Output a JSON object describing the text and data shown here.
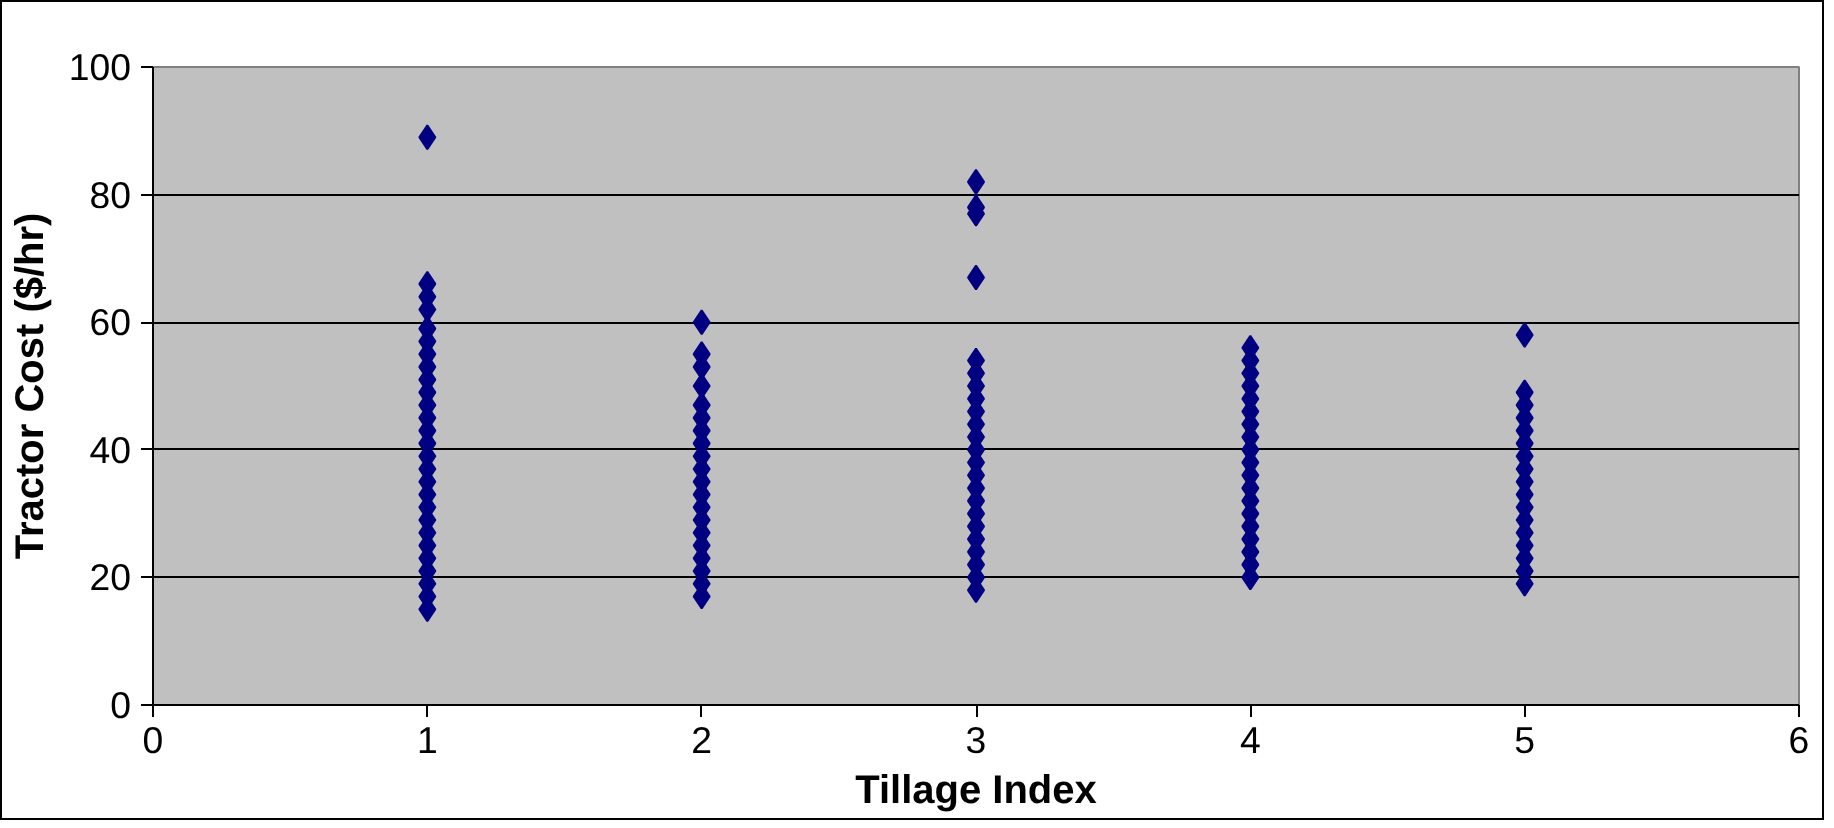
{
  "chart_data": {
    "type": "scatter",
    "xlabel": "Tillage Index",
    "ylabel": "Tractor Cost ($/hr)",
    "xlim": [
      0,
      6
    ],
    "xticks": [
      0,
      1,
      2,
      3,
      4,
      5,
      6
    ],
    "ylim": [
      0,
      100
    ],
    "yticks": [
      0,
      20,
      40,
      60,
      80,
      100
    ],
    "grid": "y",
    "marker": "diamond",
    "series": [
      {
        "color": "#000080",
        "x": [
          1,
          1,
          1,
          1,
          1,
          1,
          1,
          1,
          1,
          1,
          1,
          1,
          1,
          1,
          1,
          1,
          1,
          1,
          1,
          1,
          1,
          1,
          1,
          1,
          1,
          1,
          1
        ],
        "values": [
          89,
          66,
          64,
          62,
          59,
          57,
          55,
          53,
          51,
          49,
          47,
          45,
          43,
          41,
          39,
          37,
          35,
          33,
          31,
          29,
          27,
          25,
          23,
          21,
          19,
          17,
          15
        ]
      },
      {
        "color": "#000080",
        "x": [
          2,
          2,
          2,
          2,
          2,
          2,
          2,
          2,
          2,
          2,
          2,
          2,
          2,
          2,
          2,
          2,
          2,
          2,
          2,
          2
        ],
        "values": [
          60,
          55,
          53,
          50,
          47,
          45,
          43,
          41,
          39,
          37,
          35,
          33,
          31,
          29,
          27,
          25,
          23,
          21,
          19,
          17
        ]
      },
      {
        "color": "#000080",
        "x": [
          3,
          3,
          3,
          3,
          3,
          3,
          3,
          3,
          3,
          3,
          3,
          3,
          3,
          3,
          3,
          3,
          3,
          3,
          3,
          3,
          3,
          3,
          3
        ],
        "values": [
          82,
          78,
          77,
          67,
          54,
          52,
          50,
          48,
          46,
          44,
          42,
          40,
          38,
          36,
          34,
          32,
          30,
          28,
          26,
          24,
          22,
          20,
          18
        ]
      },
      {
        "color": "#000080",
        "x": [
          4,
          4,
          4,
          4,
          4,
          4,
          4,
          4,
          4,
          4,
          4,
          4,
          4,
          4,
          4,
          4,
          4,
          4,
          4
        ],
        "values": [
          56,
          54,
          52,
          50,
          48,
          46,
          44,
          42,
          40,
          38,
          36,
          34,
          32,
          30,
          28,
          26,
          24,
          22,
          20
        ]
      },
      {
        "color": "#000080",
        "x": [
          5,
          5,
          5,
          5,
          5,
          5,
          5,
          5,
          5,
          5,
          5,
          5,
          5,
          5,
          5,
          5,
          5
        ],
        "values": [
          58,
          49,
          47,
          45,
          43,
          41,
          39,
          37,
          35,
          33,
          31,
          29,
          27,
          25,
          23,
          21,
          19
        ]
      }
    ]
  }
}
